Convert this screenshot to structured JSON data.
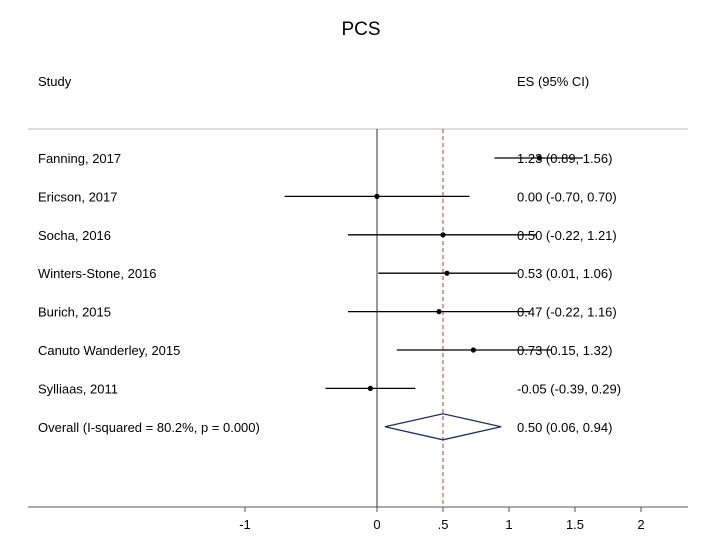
{
  "chart_data": {
    "type": "forest",
    "title": "PCS",
    "study_header": "Study",
    "es_header": "ES (95% CI)",
    "xticks": [
      {
        "value": -1,
        "label": "-1"
      },
      {
        "value": 0,
        "label": "0"
      },
      {
        "value": 0.5,
        "label": ".5"
      },
      {
        "value": 1,
        "label": "1"
      },
      {
        "value": 1.5,
        "label": "1.5"
      },
      {
        "value": 2,
        "label": "2"
      }
    ],
    "xlim": [
      -2.05,
      4.8
    ],
    "null_line": 0,
    "overall_line": 0.5,
    "studies": [
      {
        "label": "Fanning, 2017",
        "es": 1.23,
        "lo": 0.89,
        "hi": 1.56,
        "text": "1.23 (0.89, 1.56)"
      },
      {
        "label": "Ericson, 2017",
        "es": 0.0,
        "lo": -0.7,
        "hi": 0.7,
        "text": "0.00 (-0.70, 0.70)"
      },
      {
        "label": "Socha, 2016",
        "es": 0.5,
        "lo": -0.22,
        "hi": 1.21,
        "text": "0.50 (-0.22, 1.21)"
      },
      {
        "label": "Winters-Stone, 2016",
        "es": 0.53,
        "lo": 0.01,
        "hi": 1.06,
        "text": "0.53 (0.01, 1.06)"
      },
      {
        "label": "Burich, 2015",
        "es": 0.47,
        "lo": -0.22,
        "hi": 1.16,
        "text": "0.47 (-0.22, 1.16)"
      },
      {
        "label": "Canuto Wanderley, 2015",
        "es": 0.73,
        "lo": 0.15,
        "hi": 1.32,
        "text": "0.73 (0.15, 1.32)"
      },
      {
        "label": "Sylliaas, 2011",
        "es": -0.05,
        "lo": -0.39,
        "hi": 0.29,
        "text": "-0.05 (-0.39, 0.29)"
      }
    ],
    "overall": {
      "label": "Overall  (I-squared = 80.2%, p = 0.000)",
      "es": 0.5,
      "lo": 0.06,
      "hi": 0.94,
      "text": "0.50 (0.06, 0.94)"
    },
    "colors": {
      "diamond": "#1c2a78",
      "overall_line": "#c0392b",
      "axis": "#555555",
      "rule": "#bbbbbb"
    }
  }
}
